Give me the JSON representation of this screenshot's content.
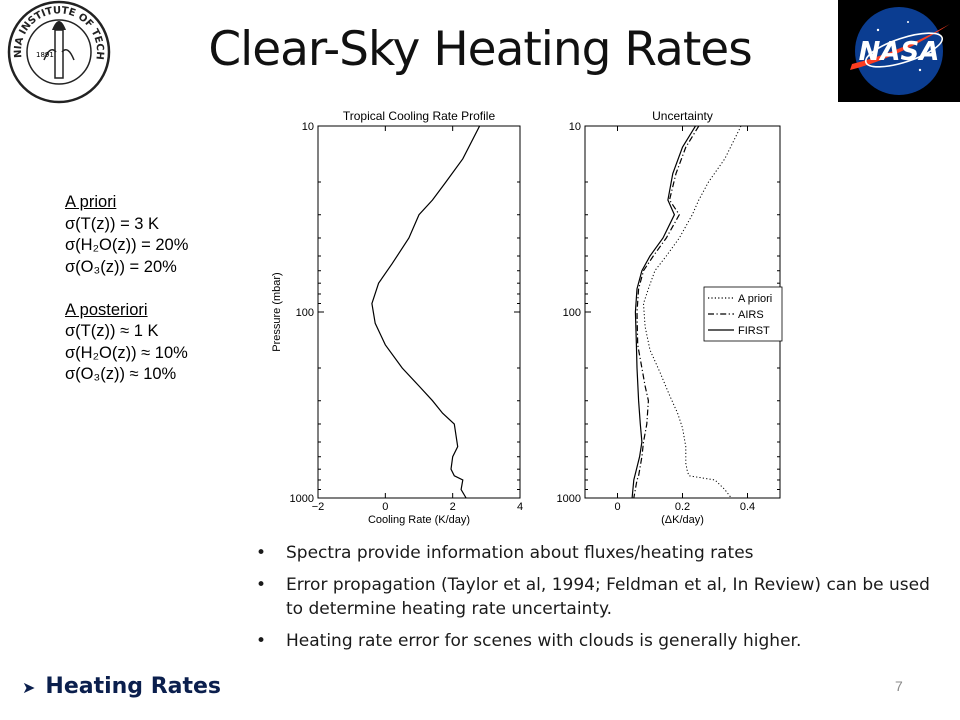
{
  "slide": {
    "title": "Clear-Sky Heating Rates",
    "page_number": "7",
    "section": {
      "arrow_icon": "arrow-right-icon",
      "label": "Heating Rates"
    }
  },
  "logos": {
    "caltech": {
      "year": "1891",
      "text": "CALIFORNIA INSTITUTE OF TECHNOLOGY"
    },
    "nasa": {
      "text": "NASA"
    }
  },
  "uncertainties": {
    "apriori_header": "A priori",
    "apriori": [
      "σ(T(z)) = 3 K",
      "σ(H₂O(z)) = 20%",
      "σ(O₃(z)) = 20%"
    ],
    "aposteriori_header": "A posteriori",
    "aposteriori": [
      "σ(T(z)) ≈ 1 K",
      "σ(H₂O(z)) ≈ 10%",
      "σ(O₃(z)) ≈ 10%"
    ]
  },
  "bullets": [
    "Spectra provide information about fluxes/heating rates",
    "Error propagation (Taylor et al, 1994; Feldman et al, In Review) can be used to determine heating rate uncertainty.",
    "Heating rate error for scenes with clouds is generally higher."
  ],
  "chart_data": [
    {
      "type": "line",
      "title": "Tropical Cooling Rate Profile",
      "xlabel": "Cooling Rate (K/day)",
      "ylabel": "Pressure (mbar)",
      "xlim": [
        -2,
        4
      ],
      "ylim": [
        1000,
        10
      ],
      "yscale": "log",
      "xticks": [
        -2,
        0,
        2,
        4
      ],
      "yticks": [
        10,
        100,
        1000
      ],
      "series": [
        {
          "x": [
            2.8,
            2.3,
            1.8,
            1.4,
            1.0,
            0.7,
            0.2,
            -0.2,
            -0.4,
            -0.3,
            0.0,
            0.5,
            1.0,
            1.4,
            1.7,
            2.05,
            2.15,
            2.0,
            1.95,
            2.05,
            2.3,
            2.25,
            2.4
          ],
          "y": [
            10,
            15,
            20,
            25,
            30,
            40,
            55,
            70,
            90,
            115,
            150,
            200,
            250,
            300,
            350,
            400,
            530,
            600,
            700,
            760,
            800,
            900,
            1000
          ]
        }
      ]
    },
    {
      "type": "line",
      "title": "Uncertainty",
      "xlabel": "(ΔK/day)",
      "ylabel": "",
      "xlim": [
        -0.1,
        0.5
      ],
      "ylim": [
        1000,
        10
      ],
      "yscale": "log",
      "xticks": [
        0,
        0.2,
        0.4
      ],
      "yticks": [
        10,
        100,
        1000
      ],
      "legend": "center-right",
      "series": [
        {
          "name": "A priori",
          "style": "dotted",
          "x": [
            0.38,
            0.33,
            0.28,
            0.25,
            0.23,
            0.19,
            0.15,
            0.115,
            0.095,
            0.08,
            0.085,
            0.1,
            0.13,
            0.16,
            0.185,
            0.2,
            0.21,
            0.21,
            0.215,
            0.22,
            0.3,
            0.33,
            0.35
          ],
          "y": [
            10,
            15,
            20,
            25,
            30,
            40,
            50,
            60,
            75,
            90,
            120,
            160,
            210,
            280,
            350,
            420,
            530,
            650,
            720,
            760,
            800,
            900,
            1000
          ]
        },
        {
          "name": "AIRS",
          "style": "dash-dot",
          "x": [
            0.25,
            0.21,
            0.18,
            0.16,
            0.19,
            0.15,
            0.11,
            0.08,
            0.065,
            0.06,
            0.062,
            0.075,
            0.085,
            0.095,
            0.09,
            0.08,
            0.075,
            0.065,
            0.06,
            0.05
          ],
          "y": [
            10,
            13,
            18,
            25,
            30,
            40,
            50,
            60,
            75,
            100,
            150,
            200,
            250,
            300,
            400,
            500,
            600,
            760,
            800,
            1000
          ]
        },
        {
          "name": "FIRST",
          "style": "solid",
          "x": [
            0.24,
            0.2,
            0.17,
            0.155,
            0.175,
            0.14,
            0.1,
            0.075,
            0.06,
            0.055,
            0.058,
            0.06,
            0.065,
            0.07,
            0.075,
            0.068,
            0.05,
            0.045
          ],
          "y": [
            10,
            13,
            18,
            25,
            30,
            40,
            50,
            60,
            75,
            100,
            150,
            200,
            300,
            400,
            500,
            600,
            800,
            1000
          ]
        }
      ]
    }
  ]
}
